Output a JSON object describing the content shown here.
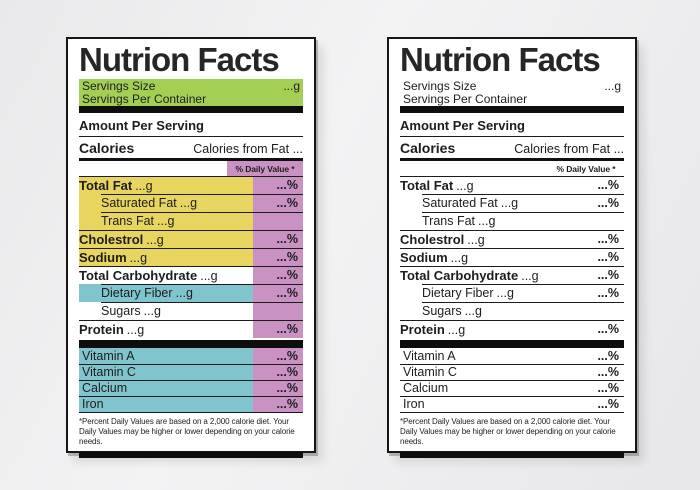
{
  "label": {
    "title": "Nutrion Facts",
    "servings": {
      "size_label": "Servings Size",
      "size_value": "...g",
      "per_container_label": "Servings Per Container"
    },
    "amount_per_serving": "Amount Per Serving",
    "calories_label": "Calories",
    "calories_from_fat": "Calories from Fat ...",
    "daily_value_header": "% Daily Value *",
    "nutrients": [
      {
        "name": "Total Fat",
        "amount": "...g",
        "dv": "...%",
        "bold": true,
        "indent": false,
        "hl": "yellow"
      },
      {
        "name": "Saturated Fat",
        "amount": "...g",
        "dv": "...%",
        "bold": false,
        "indent": true,
        "hl": "yellow"
      },
      {
        "name": "Trans Fat",
        "amount": "...g",
        "dv": "",
        "bold": false,
        "indent": true,
        "hl": "yellow"
      },
      {
        "name": "Cholestrol",
        "amount": "...g",
        "dv": "...%",
        "bold": true,
        "indent": false,
        "hl": "yellow"
      },
      {
        "name": "Sodium",
        "amount": "...g",
        "dv": "...%",
        "bold": true,
        "indent": false,
        "hl": "yellow"
      },
      {
        "name": "Total Carbohydrate",
        "amount": "...g",
        "dv": "...%",
        "bold": true,
        "indent": false,
        "hl": "none"
      },
      {
        "name": "Dietary Fiber",
        "amount": "...g",
        "dv": "...%",
        "bold": false,
        "indent": true,
        "hl": "blue"
      },
      {
        "name": "Sugars",
        "amount": "...g",
        "dv": "",
        "bold": false,
        "indent": true,
        "hl": "none"
      },
      {
        "name": "Protein",
        "amount": "...g",
        "dv": "...%",
        "bold": true,
        "indent": false,
        "hl": "none"
      }
    ],
    "vitamins": [
      {
        "name": "Vitamin A",
        "dv": "...%"
      },
      {
        "name": "Vitamin C",
        "dv": "...%"
      },
      {
        "name": "Calcium",
        "dv": "...%"
      },
      {
        "name": "Iron",
        "dv": "...%"
      }
    ],
    "footnote": "*Percent Daily Values are based on a 2,000 calorie diet. Your Daily Values may be higher or lower depending on your calorie needs."
  },
  "colors": {
    "green": "#a4cf55",
    "yellow": "#e7d55f",
    "pink": "#ca92c2",
    "blue": "#80c4ce",
    "bar": "#0e0e0e"
  }
}
